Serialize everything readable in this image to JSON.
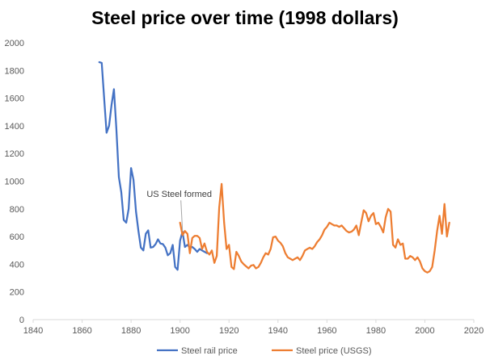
{
  "chart_data": {
    "type": "line",
    "title": "Steel price over time (1998 dollars)",
    "xlabel": "",
    "ylabel": "",
    "xlim": [
      1840,
      2020
    ],
    "ylim": [
      0,
      2000
    ],
    "xticks": [
      1840,
      1860,
      1880,
      1900,
      1920,
      1940,
      1960,
      1980,
      2000,
      2020
    ],
    "yticks": [
      0,
      200,
      400,
      600,
      800,
      1000,
      1200,
      1400,
      1600,
      1800,
      2000
    ],
    "grid": false,
    "legend_position": "bottom",
    "annotation": {
      "text": "US Steel formed",
      "x": 1901,
      "y": 640
    },
    "series": [
      {
        "name": "Steel rail price",
        "color": "#4472C4",
        "points": [
          [
            1867,
            1860
          ],
          [
            1868,
            1855
          ],
          [
            1869,
            1600
          ],
          [
            1870,
            1350
          ],
          [
            1871,
            1400
          ],
          [
            1872,
            1550
          ],
          [
            1873,
            1665
          ],
          [
            1874,
            1380
          ],
          [
            1875,
            1030
          ],
          [
            1876,
            920
          ],
          [
            1877,
            720
          ],
          [
            1878,
            700
          ],
          [
            1879,
            800
          ],
          [
            1880,
            1095
          ],
          [
            1881,
            1010
          ],
          [
            1882,
            780
          ],
          [
            1883,
            640
          ],
          [
            1884,
            520
          ],
          [
            1885,
            500
          ],
          [
            1886,
            620
          ],
          [
            1887,
            645
          ],
          [
            1888,
            520
          ],
          [
            1889,
            525
          ],
          [
            1890,
            545
          ],
          [
            1891,
            580
          ],
          [
            1892,
            550
          ],
          [
            1893,
            545
          ],
          [
            1894,
            520
          ],
          [
            1895,
            465
          ],
          [
            1896,
            480
          ],
          [
            1897,
            540
          ],
          [
            1898,
            380
          ],
          [
            1899,
            360
          ],
          [
            1900,
            570
          ],
          [
            1901,
            635
          ],
          [
            1902,
            525
          ],
          [
            1903,
            540
          ],
          [
            1904,
            520
          ],
          [
            1905,
            525
          ],
          [
            1906,
            510
          ],
          [
            1907,
            490
          ],
          [
            1908,
            510
          ],
          [
            1909,
            500
          ],
          [
            1910,
            490
          ],
          [
            1911,
            480
          ]
        ]
      },
      {
        "name": "Steel price (USGS)",
        "color": "#ED7D31",
        "points": [
          [
            1900,
            700
          ],
          [
            1901,
            610
          ],
          [
            1902,
            640
          ],
          [
            1903,
            620
          ],
          [
            1904,
            480
          ],
          [
            1905,
            590
          ],
          [
            1906,
            605
          ],
          [
            1907,
            605
          ],
          [
            1908,
            590
          ],
          [
            1909,
            510
          ],
          [
            1910,
            550
          ],
          [
            1911,
            490
          ],
          [
            1912,
            470
          ],
          [
            1913,
            500
          ],
          [
            1914,
            410
          ],
          [
            1915,
            460
          ],
          [
            1916,
            810
          ],
          [
            1917,
            980
          ],
          [
            1918,
            700
          ],
          [
            1919,
            510
          ],
          [
            1920,
            540
          ],
          [
            1921,
            380
          ],
          [
            1922,
            365
          ],
          [
            1923,
            490
          ],
          [
            1924,
            460
          ],
          [
            1925,
            420
          ],
          [
            1926,
            400
          ],
          [
            1927,
            385
          ],
          [
            1928,
            370
          ],
          [
            1929,
            390
          ],
          [
            1930,
            395
          ],
          [
            1931,
            370
          ],
          [
            1932,
            380
          ],
          [
            1933,
            410
          ],
          [
            1934,
            450
          ],
          [
            1935,
            480
          ],
          [
            1936,
            470
          ],
          [
            1937,
            510
          ],
          [
            1938,
            595
          ],
          [
            1939,
            600
          ],
          [
            1940,
            570
          ],
          [
            1941,
            555
          ],
          [
            1942,
            530
          ],
          [
            1943,
            480
          ],
          [
            1944,
            450
          ],
          [
            1945,
            440
          ],
          [
            1946,
            430
          ],
          [
            1947,
            440
          ],
          [
            1948,
            450
          ],
          [
            1949,
            430
          ],
          [
            1950,
            460
          ],
          [
            1951,
            500
          ],
          [
            1952,
            510
          ],
          [
            1953,
            520
          ],
          [
            1954,
            510
          ],
          [
            1955,
            530
          ],
          [
            1956,
            560
          ],
          [
            1957,
            580
          ],
          [
            1958,
            610
          ],
          [
            1959,
            650
          ],
          [
            1960,
            670
          ],
          [
            1961,
            700
          ],
          [
            1962,
            690
          ],
          [
            1963,
            680
          ],
          [
            1964,
            680
          ],
          [
            1965,
            670
          ],
          [
            1966,
            680
          ],
          [
            1967,
            660
          ],
          [
            1968,
            640
          ],
          [
            1969,
            630
          ],
          [
            1970,
            635
          ],
          [
            1971,
            650
          ],
          [
            1972,
            680
          ],
          [
            1973,
            610
          ],
          [
            1974,
            700
          ],
          [
            1975,
            790
          ],
          [
            1976,
            770
          ],
          [
            1977,
            710
          ],
          [
            1978,
            750
          ],
          [
            1979,
            770
          ],
          [
            1980,
            690
          ],
          [
            1981,
            700
          ],
          [
            1982,
            670
          ],
          [
            1983,
            630
          ],
          [
            1984,
            740
          ],
          [
            1985,
            800
          ],
          [
            1986,
            780
          ],
          [
            1987,
            540
          ],
          [
            1988,
            520
          ],
          [
            1989,
            580
          ],
          [
            1990,
            540
          ],
          [
            1991,
            550
          ],
          [
            1992,
            440
          ],
          [
            1993,
            440
          ],
          [
            1994,
            460
          ],
          [
            1995,
            450
          ],
          [
            1996,
            430
          ],
          [
            1997,
            450
          ],
          [
            1998,
            420
          ],
          [
            1999,
            370
          ],
          [
            2000,
            350
          ],
          [
            2001,
            340
          ],
          [
            2002,
            350
          ],
          [
            2003,
            380
          ],
          [
            2004,
            500
          ],
          [
            2005,
            640
          ],
          [
            2006,
            750
          ],
          [
            2007,
            620
          ],
          [
            2008,
            835
          ],
          [
            2009,
            600
          ],
          [
            2010,
            700
          ]
        ]
      }
    ]
  }
}
